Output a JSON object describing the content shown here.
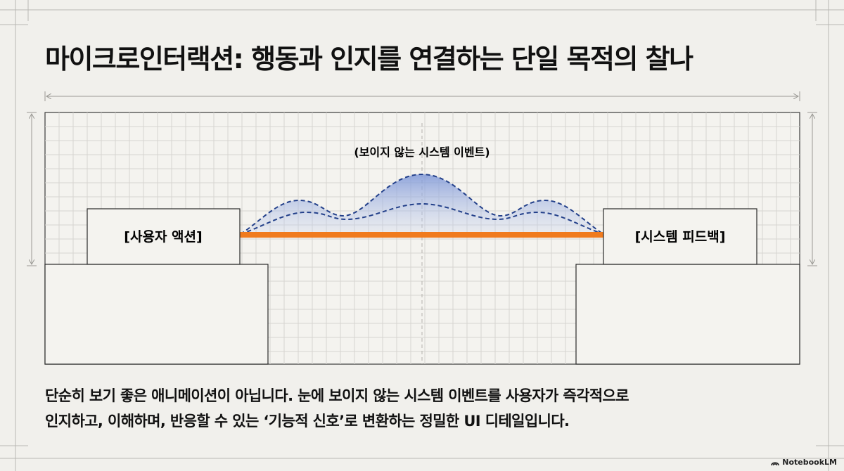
{
  "title": "마이크로인터랙션: 행동과 인지를 연결하는 단일 목적의 찰나",
  "diagram": {
    "event_label": "(보이지 않는 시스템 이벤트)",
    "action_label": "[사용자 액션]",
    "feedback_label": "[시스템 피드백]",
    "colors": {
      "connector": "#f07b1e",
      "wave_stroke": "#23408a",
      "wave_fill": "#8ea6df",
      "grid": "#d3d2cd",
      "box_stroke": "#222222"
    }
  },
  "description": {
    "line1": "단순히 보기 좋은 애니메이션이 아닙니다. 눈에 보이지 않는 시스템 이벤트를 사용자가 즉각적으로",
    "line2": "인지하고, 이해하며, 반응할 수 있는 ‘기능적 신호’로 변환하는 정밀한 UI 디테일입니다."
  },
  "brand": {
    "name": "NotebookLM",
    "icon": "notebooklm-logo-icon"
  }
}
